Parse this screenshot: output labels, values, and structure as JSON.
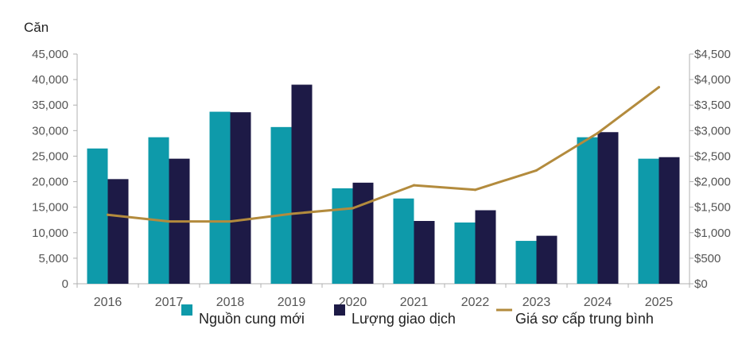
{
  "chart_data": {
    "type": "bar",
    "y_unit_label": "Căn",
    "categories": [
      "2016",
      "2017",
      "2018",
      "2019",
      "2020",
      "2021",
      "2022",
      "2023",
      "2024",
      "2025"
    ],
    "series": [
      {
        "name": "Nguồn cung mới",
        "kind": "bar",
        "axis": "left",
        "color": "#0e9aaa",
        "values": [
          26500,
          28700,
          33700,
          30700,
          18700,
          16700,
          12000,
          8400,
          28700,
          24500
        ]
      },
      {
        "name": "Lượng giao dịch",
        "kind": "bar",
        "axis": "left",
        "color": "#1d1a46",
        "values": [
          20500,
          24500,
          33600,
          39000,
          19800,
          12300,
          14400,
          9400,
          29700,
          24800
        ]
      },
      {
        "name": "Giá sơ cấp trung bình",
        "kind": "line",
        "axis": "right",
        "color": "#b38b3d",
        "values": [
          1350,
          1220,
          1220,
          1370,
          1480,
          1930,
          1840,
          2220,
          2950,
          3850
        ]
      }
    ],
    "y_left": {
      "min": 0,
      "max": 45000,
      "step": 5000,
      "tick_labels": [
        "0",
        "5,000",
        "10,000",
        "15,000",
        "20,000",
        "25,000",
        "30,000",
        "35,000",
        "40,000",
        "45,000"
      ]
    },
    "y_right": {
      "min": 0,
      "max": 4500,
      "step": 500,
      "tick_labels": [
        "$0",
        "$500",
        "$1,000",
        "$1,500",
        "$2,000",
        "$2,500",
        "$3,000",
        "$3,500",
        "$4,000",
        "$4,500"
      ]
    },
    "grid": false,
    "legend_position": "bottom"
  }
}
